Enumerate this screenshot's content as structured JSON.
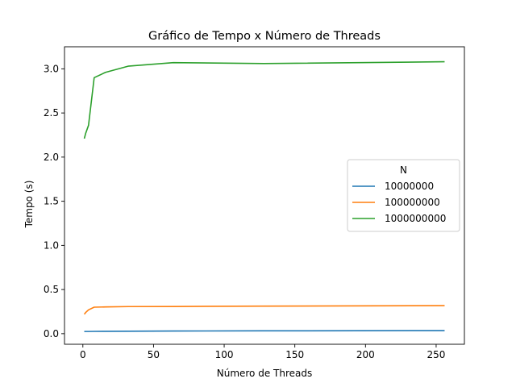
{
  "chart_data": {
    "type": "line",
    "title": "Gráfico de Tempo x Número de Threads",
    "xlabel": "Número de Threads",
    "ylabel": "Tempo (s)",
    "xlim": [
      -13,
      270
    ],
    "ylim": [
      -0.12,
      3.25
    ],
    "xticks": [
      0,
      50,
      100,
      150,
      200,
      250
    ],
    "yticks": [
      0.0,
      0.5,
      1.0,
      1.5,
      2.0,
      2.5,
      3.0
    ],
    "xtick_labels": [
      "0",
      "50",
      "100",
      "150",
      "200",
      "250"
    ],
    "ytick_labels": [
      "0.0",
      "0.5",
      "1.0",
      "1.5",
      "2.0",
      "2.5",
      "3.0"
    ],
    "grid": false,
    "legend": {
      "title": "N",
      "placement": "center-right"
    },
    "series": [
      {
        "name": "10000000",
        "color": "#1f77b4",
        "x": [
          1,
          2,
          4,
          8,
          16,
          32,
          64,
          128,
          256
        ],
        "y": [
          0.024,
          0.025,
          0.025,
          0.026,
          0.027,
          0.028,
          0.03,
          0.032,
          0.035
        ]
      },
      {
        "name": "100000000",
        "color": "#ff7f0e",
        "x": [
          1,
          2,
          4,
          8,
          16,
          32,
          64,
          128,
          256
        ],
        "y": [
          0.22,
          0.24,
          0.27,
          0.3,
          0.303,
          0.307,
          0.308,
          0.312,
          0.318
        ]
      },
      {
        "name": "1000000000",
        "color": "#2ca02c",
        "x": [
          1,
          2,
          4,
          8,
          16,
          32,
          64,
          128,
          256
        ],
        "y": [
          2.21,
          2.27,
          2.36,
          2.9,
          2.96,
          3.03,
          3.07,
          3.06,
          3.08
        ]
      }
    ]
  }
}
